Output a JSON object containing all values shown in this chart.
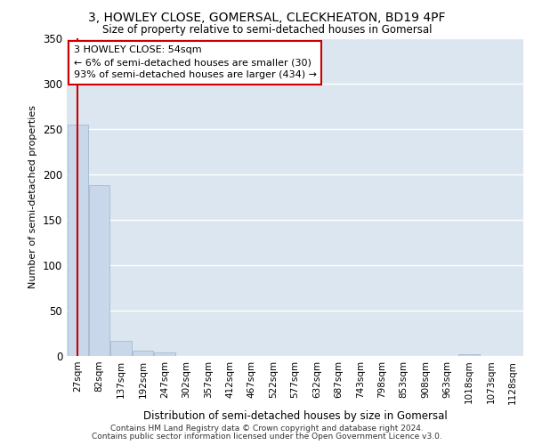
{
  "title": "3, HOWLEY CLOSE, GOMERSAL, CLECKHEATON, BD19 4PF",
  "subtitle": "Size of property relative to semi-detached houses in Gomersal",
  "xlabel": "Distribution of semi-detached houses by size in Gomersal",
  "ylabel": "Number of semi-detached properties",
  "bar_color": "#c8d8ea",
  "bar_edge_color": "#9ab4cc",
  "background_color": "#dce6f0",
  "grid_color": "#ffffff",
  "bin_labels": [
    "27sqm",
    "82sqm",
    "137sqm",
    "192sqm",
    "247sqm",
    "302sqm",
    "357sqm",
    "412sqm",
    "467sqm",
    "522sqm",
    "577sqm",
    "632sqm",
    "687sqm",
    "743sqm",
    "798sqm",
    "853sqm",
    "908sqm",
    "963sqm",
    "1018sqm",
    "1073sqm",
    "1128sqm"
  ],
  "bar_heights": [
    255,
    188,
    17,
    6,
    4,
    0,
    0,
    0,
    0,
    0,
    0,
    0,
    0,
    0,
    0,
    0,
    0,
    0,
    2,
    0,
    0
  ],
  "annotation_text": "3 HOWLEY CLOSE: 54sqm\n← 6% of semi-detached houses are smaller (30)\n93% of semi-detached houses are larger (434) →",
  "annotation_box_color": "#ffffff",
  "annotation_box_edge": "#cc0000",
  "red_line_color": "#cc0000",
  "ylim": [
    0,
    350
  ],
  "yticks": [
    0,
    50,
    100,
    150,
    200,
    250,
    300,
    350
  ],
  "footnote1": "Contains HM Land Registry data © Crown copyright and database right 2024.",
  "footnote2": "Contains public sector information licensed under the Open Government Licence v3.0."
}
